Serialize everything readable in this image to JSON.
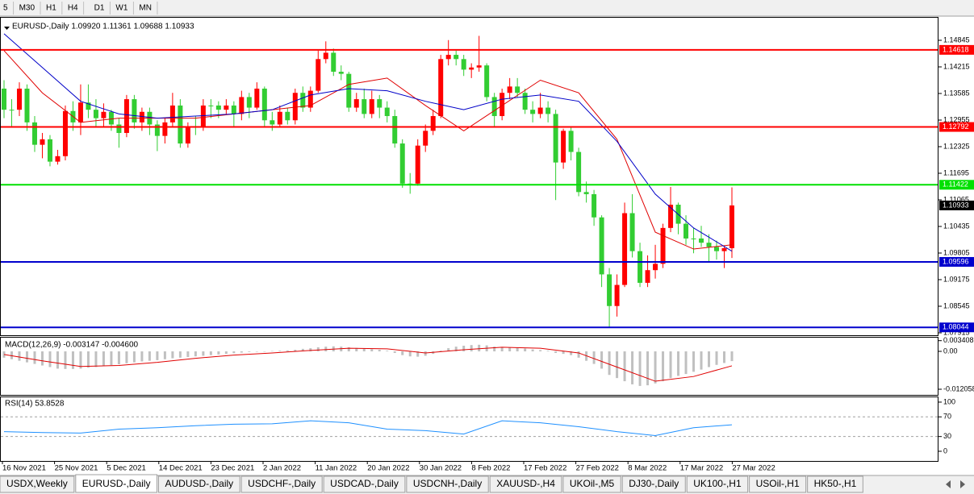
{
  "toolbar": {
    "timeframes": [
      "5",
      "M30",
      "H1",
      "H4",
      "D1",
      "W1",
      "MN"
    ]
  },
  "chart_data": [
    {
      "type": "candlestick",
      "title": "EURUSD-,Daily  1.09920 1.11361 1.09688 1.10933",
      "up_color": "#ff0000",
      "down_color": "#32cd32",
      "ylim": [
        1.07858,
        1.15303
      ],
      "yticks": [
        1.14845,
        1.14215,
        1.13585,
        1.12955,
        1.12325,
        1.11695,
        1.11065,
        1.10435,
        1.09805,
        1.09175,
        1.08545,
        1.07915
      ],
      "hlines": [
        {
          "value": 1.14618,
          "color": "#ff0000"
        },
        {
          "value": 1.12792,
          "color": "#ff0000"
        },
        {
          "value": 1.11422,
          "color": "#00e000"
        },
        {
          "value": 1.09596,
          "color": "#0000cd"
        },
        {
          "value": 1.08044,
          "color": "#0000cd"
        }
      ],
      "lines": [
        {
          "color": "#e00000",
          "x": [
            0,
            5,
            10,
            15,
            20,
            25,
            30,
            35,
            40,
            45,
            50,
            55,
            60,
            65,
            70,
            75,
            80,
            85,
            90,
            95
          ],
          "values": [
            1.146,
            1.136,
            1.129,
            1.13,
            1.13,
            1.13,
            1.131,
            1.132,
            1.133,
            1.138,
            1.1395,
            1.133,
            1.127,
            1.133,
            1.139,
            1.136,
            1.125,
            1.103,
            1.099,
            1.1
          ]
        },
        {
          "color": "#0000c8",
          "x": [
            0,
            5,
            10,
            15,
            20,
            25,
            30,
            35,
            40,
            45,
            50,
            55,
            60,
            65,
            70,
            75,
            80,
            85,
            90,
            95
          ],
          "values": [
            1.15,
            1.142,
            1.134,
            1.131,
            1.13,
            1.1305,
            1.131,
            1.132,
            1.1355,
            1.137,
            1.1365,
            1.134,
            1.132,
            1.1345,
            1.1355,
            1.134,
            1.1245,
            1.112,
            1.104,
            1.0985
          ]
        }
      ],
      "ohlc": [
        [
          1.137,
          1.139,
          1.13,
          1.132
        ],
        [
          1.132,
          1.1345,
          1.128,
          1.132
        ],
        [
          1.132,
          1.1385,
          1.1305,
          1.137
        ],
        [
          1.137,
          1.138,
          1.127,
          1.129
        ],
        [
          1.129,
          1.1305,
          1.122,
          1.1237
        ],
        [
          1.1237,
          1.1265,
          1.1205,
          1.125
        ],
        [
          1.125,
          1.126,
          1.1186,
          1.1197
        ],
        [
          1.1197,
          1.1225,
          1.119,
          1.121
        ],
        [
          1.121,
          1.133,
          1.12,
          1.1317
        ],
        [
          1.1317,
          1.134,
          1.127,
          1.129
        ],
        [
          1.129,
          1.138,
          1.126,
          1.1337
        ],
        [
          1.1337,
          1.138,
          1.13,
          1.132
        ],
        [
          1.132,
          1.1345,
          1.128,
          1.13
        ],
        [
          1.13,
          1.1335,
          1.128,
          1.1315
        ],
        [
          1.1315,
          1.132,
          1.127,
          1.1285
        ],
        [
          1.1285,
          1.13,
          1.123,
          1.1265
        ],
        [
          1.1265,
          1.1355,
          1.1255,
          1.1345
        ],
        [
          1.1345,
          1.1355,
          1.1275,
          1.129
        ],
        [
          1.129,
          1.1325,
          1.127,
          1.1315
        ],
        [
          1.1315,
          1.1325,
          1.126,
          1.1285
        ],
        [
          1.1285,
          1.1295,
          1.1222,
          1.1258
        ],
        [
          1.1258,
          1.13,
          1.124,
          1.129
        ],
        [
          1.129,
          1.136,
          1.128,
          1.133
        ],
        [
          1.133,
          1.1345,
          1.123,
          1.124
        ],
        [
          1.124,
          1.129,
          1.123,
          1.128
        ],
        [
          1.128,
          1.1305,
          1.126,
          1.128
        ],
        [
          1.128,
          1.1345,
          1.127,
          1.133
        ],
        [
          1.133,
          1.1345,
          1.13,
          1.133
        ],
        [
          1.133,
          1.134,
          1.13,
          1.132
        ],
        [
          1.132,
          1.1345,
          1.131,
          1.133
        ],
        [
          1.133,
          1.134,
          1.128,
          1.131
        ],
        [
          1.131,
          1.1365,
          1.1295,
          1.135
        ],
        [
          1.135,
          1.136,
          1.13,
          1.1325
        ],
        [
          1.1325,
          1.1385,
          1.132,
          1.137
        ],
        [
          1.137,
          1.1375,
          1.128,
          1.1295
        ],
        [
          1.1295,
          1.1315,
          1.127,
          1.1285
        ],
        [
          1.1285,
          1.133,
          1.128,
          1.1315
        ],
        [
          1.1315,
          1.1325,
          1.1285,
          1.1295
        ],
        [
          1.1295,
          1.137,
          1.1285,
          1.136
        ],
        [
          1.136,
          1.1375,
          1.1315,
          1.1325
        ],
        [
          1.1325,
          1.1375,
          1.1315,
          1.1365
        ],
        [
          1.1365,
          1.146,
          1.136,
          1.144
        ],
        [
          1.144,
          1.1482,
          1.143,
          1.1455
        ],
        [
          1.1455,
          1.1465,
          1.14,
          1.141
        ],
        [
          1.141,
          1.1425,
          1.139,
          1.1405
        ],
        [
          1.1405,
          1.141,
          1.1315,
          1.1325
        ],
        [
          1.1325,
          1.136,
          1.1315,
          1.1345
        ],
        [
          1.1345,
          1.137,
          1.13,
          1.131
        ],
        [
          1.131,
          1.1365,
          1.13,
          1.1345
        ],
        [
          1.1345,
          1.1355,
          1.13,
          1.1325
        ],
        [
          1.1325,
          1.134,
          1.129,
          1.1305
        ],
        [
          1.1305,
          1.132,
          1.123,
          1.124
        ],
        [
          1.124,
          1.125,
          1.1135,
          1.1145
        ],
        [
          1.1145,
          1.117,
          1.1121,
          1.1145
        ],
        [
          1.1145,
          1.125,
          1.114,
          1.1235
        ],
        [
          1.1235,
          1.1285,
          1.122,
          1.127
        ],
        [
          1.127,
          1.132,
          1.126,
          1.1305
        ],
        [
          1.1305,
          1.145,
          1.13,
          1.144
        ],
        [
          1.144,
          1.1485,
          1.1425,
          1.145
        ],
        [
          1.145,
          1.146,
          1.1425,
          1.144
        ],
        [
          1.144,
          1.145,
          1.14,
          1.1415
        ],
        [
          1.1415,
          1.143,
          1.1395,
          1.142
        ],
        [
          1.142,
          1.1495,
          1.141,
          1.1425
        ],
        [
          1.1425,
          1.143,
          1.134,
          1.135
        ],
        [
          1.135,
          1.136,
          1.128,
          1.1305
        ],
        [
          1.1305,
          1.137,
          1.1295,
          1.136
        ],
        [
          1.136,
          1.1395,
          1.1345,
          1.1375
        ],
        [
          1.1375,
          1.1395,
          1.135,
          1.136
        ],
        [
          1.136,
          1.137,
          1.131,
          1.132
        ],
        [
          1.132,
          1.134,
          1.129,
          1.131
        ],
        [
          1.131,
          1.136,
          1.13,
          1.1325
        ],
        [
          1.1325,
          1.134,
          1.129,
          1.131
        ],
        [
          1.131,
          1.132,
          1.1106,
          1.1195
        ],
        [
          1.1195,
          1.1275,
          1.118,
          1.127
        ],
        [
          1.127,
          1.128,
          1.12,
          1.122
        ],
        [
          1.122,
          1.123,
          1.1115,
          1.1125
        ],
        [
          1.1125,
          1.115,
          1.11,
          1.112
        ],
        [
          1.112,
          1.113,
          1.1045,
          1.1065
        ],
        [
          1.1065,
          1.107,
          1.09,
          1.093
        ],
        [
          1.093,
          1.0945,
          1.0806,
          1.0855
        ],
        [
          1.0855,
          1.093,
          1.083,
          1.0905
        ],
        [
          1.0905,
          1.11,
          1.09,
          1.1075
        ],
        [
          1.1075,
          1.112,
          1.097,
          1.0985
        ],
        [
          1.0985,
          1.1005,
          1.09,
          1.091
        ],
        [
          1.091,
          1.0975,
          1.09,
          1.094
        ],
        [
          1.094,
          1.1,
          1.092,
          1.0955
        ],
        [
          1.0955,
          1.105,
          1.0945,
          1.104
        ],
        [
          1.104,
          1.1137,
          1.103,
          1.1095
        ],
        [
          1.1095,
          1.11,
          1.1025,
          1.105
        ],
        [
          1.105,
          1.107,
          1.1,
          1.1015
        ],
        [
          1.1015,
          1.104,
          1.098,
          1.1015
        ],
        [
          1.1015,
          1.1045,
          1.0995,
          1.1005
        ],
        [
          1.1005,
          1.1025,
          1.096,
          1.0995
        ],
        [
          1.0995,
          1.101,
          1.0965,
          1.0985
        ],
        [
          1.0985,
          1.0995,
          1.0945,
          1.0992
        ],
        [
          1.0992,
          1.11361,
          1.09688,
          1.10933
        ]
      ]
    },
    {
      "type": "bar",
      "title": "MACD(12,26,9) -0.003147 -0.004600",
      "color": "#c0c0c0",
      "ylim": [
        -0.01385,
        0.00436
      ],
      "yticks": [
        0.003408,
        {
          "value": 0,
          "label": "0.00"
        },
        -0.012058
      ],
      "values": [
        -0.002,
        -0.0025,
        -0.003,
        -0.0035,
        -0.004,
        -0.0045,
        -0.005,
        -0.0055,
        -0.0056,
        -0.0056,
        -0.0055,
        -0.0052,
        -0.005,
        -0.0047,
        -0.0044,
        -0.0041,
        -0.0038,
        -0.0035,
        -0.0032,
        -0.003,
        -0.0028,
        -0.0025,
        -0.0022,
        -0.002,
        -0.0018,
        -0.0016,
        -0.0014,
        -0.0012,
        -0.001,
        -0.0008,
        -0.0006,
        -0.0004,
        -0.0002,
        0.0,
        0.0,
        0.0001,
        0.0002,
        0.0003,
        0.0005,
        0.0008,
        0.001,
        0.0013,
        0.0015,
        0.0016,
        0.0015,
        0.0013,
        0.0011,
        0.0009,
        0.0007,
        0.0005,
        0.0002,
        -0.0005,
        -0.0012,
        -0.0016,
        -0.0017,
        -0.0014,
        -0.0008,
        0.0002,
        0.001,
        0.0015,
        0.0018,
        0.002,
        0.0021,
        0.0019,
        0.0015,
        0.0013,
        0.0012,
        0.0011,
        0.0009,
        0.0006,
        0.0004,
        0.0002,
        -0.0005,
        -0.0008,
        -0.0012,
        -0.002,
        -0.003,
        -0.004,
        -0.0055,
        -0.0075,
        -0.0085,
        -0.0095,
        -0.0105,
        -0.011,
        -0.0108,
        -0.0102,
        -0.0095,
        -0.0085,
        -0.0078,
        -0.0072,
        -0.0065,
        -0.0058,
        -0.005,
        -0.0043,
        -0.0037,
        -0.0031
      ],
      "lines": [
        {
          "color": "#e00000",
          "x": [
            0,
            5,
            10,
            15,
            20,
            25,
            30,
            35,
            40,
            45,
            50,
            55,
            60,
            65,
            70,
            75,
            80,
            85,
            90,
            95
          ],
          "values": [
            -0.001,
            -0.003,
            -0.0048,
            -0.0045,
            -0.0035,
            -0.0022,
            -0.0012,
            -0.0005,
            0.0003,
            0.001,
            0.0008,
            -0.0005,
            0.0005,
            0.0013,
            0.001,
            -0.0005,
            -0.005,
            -0.0095,
            -0.008,
            -0.0046
          ]
        }
      ]
    },
    {
      "type": "line",
      "title": "RSI(14) 53.8528",
      "ylim": [
        -19.7,
        109.8
      ],
      "yticks": [
        100,
        70,
        30,
        0
      ],
      "levels": [
        70,
        30
      ],
      "lines": [
        {
          "color": "#1e90ff",
          "x": [
            0,
            5,
            10,
            15,
            20,
            25,
            30,
            35,
            40,
            45,
            50,
            55,
            60,
            65,
            70,
            75,
            80,
            85,
            90,
            95
          ],
          "values": [
            40,
            38,
            37,
            45,
            48,
            52,
            55,
            56,
            62,
            58,
            45,
            42,
            35,
            62,
            58,
            50,
            40,
            32,
            48,
            53.8528
          ]
        }
      ],
      "x_labels": [
        "16 Nov 2021",
        "25 Nov 2021",
        "5 Dec 2021",
        "14 Dec 2021",
        "23 Dec 2021",
        "2 Jan 2022",
        "11 Jan 2022",
        "20 Jan 2022",
        "30 Jan 2022",
        "8 Feb 2022",
        "17 Feb 2022",
        "27 Feb 2022",
        "8 Mar 2022",
        "17 Mar 2022",
        "27 Mar 2022"
      ]
    }
  ],
  "tabs": {
    "items": [
      "USDX,Weekly",
      "EURUSD-,Daily",
      "AUDUSD-,Daily",
      "USDCHF-,Daily",
      "USDCAD-,Daily",
      "USDCNH-,Daily",
      "XAUUSD-,H4",
      "UKOil-,M5",
      "DJ30-,Daily",
      "UK100-,H1",
      "USOil-,H1",
      "HK50-,H1"
    ],
    "active": 1
  }
}
